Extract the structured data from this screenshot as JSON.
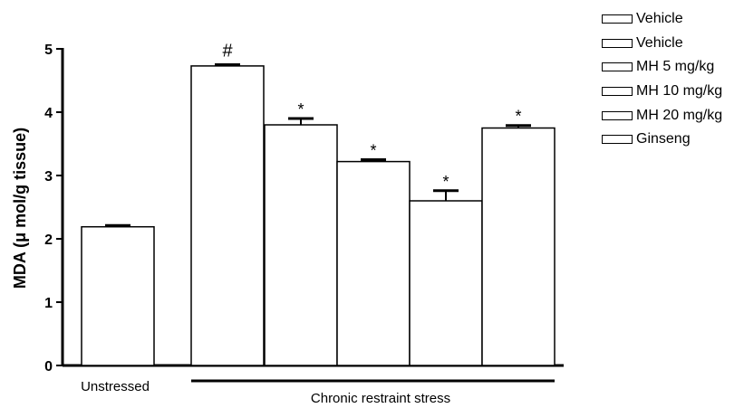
{
  "chart_data": {
    "type": "bar",
    "categories": [
      "Vehicle",
      "Vehicle",
      "MH 5 mg/kg",
      "MH 10 mg/kg",
      "MH 20 mg/kg",
      "Ginseng"
    ],
    "values": [
      2.19,
      4.73,
      3.8,
      3.22,
      2.6,
      3.75
    ],
    "errors": [
      0.02,
      0.02,
      0.1,
      0.03,
      0.16,
      0.04
    ],
    "annotations": [
      "",
      "#",
      "*",
      "*",
      "*",
      "*"
    ],
    "ylabel": "MDA (μ mol/g tissue)",
    "ylim": [
      0,
      5
    ],
    "yticks": [
      0,
      1,
      2,
      3,
      4,
      5
    ],
    "group_labels": [
      "Unstressed",
      "Chronic restraint stress"
    ],
    "legend": [
      "Vehicle",
      "Vehicle",
      "MH 5 mg/kg",
      "MH 10 mg/kg",
      "MH 20 mg/kg",
      "Ginseng"
    ],
    "legend_position": "top-right",
    "grid": false,
    "bar_color": "#ffffff",
    "edge_color": "#000000"
  }
}
